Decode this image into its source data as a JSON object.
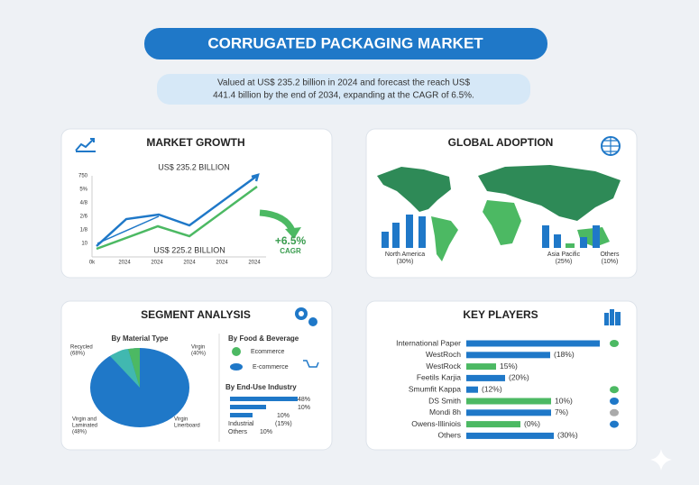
{
  "header": {
    "title": "CORRUGATED PACKAGING MARKET",
    "subtitle_lines": [
      "Valued at US$ 235.2 billion in 2024 and forecast the reach US$",
      "441.4 billion by the end of 2034, expanding at the CAGR of 6.5%."
    ]
  },
  "market_growth": {
    "title": "MARKET GROWTH",
    "top_label": "US$ 235.2 BILLION",
    "bottom_label": "US$ 225.2 BILLION",
    "cagr_value": "+6.5%",
    "cagr_label": "CAGR",
    "y_labels": [
      "750",
      "5%",
      "4/8",
      "2/6",
      "1/8",
      "10"
    ],
    "x_labels": [
      "0k",
      "2024",
      "2024",
      "2024",
      "2024",
      "2024"
    ]
  },
  "global_adoption": {
    "title": "GLOBAL ADOPTION",
    "regions": [
      {
        "name": "North America",
        "share": "(30%)"
      },
      {
        "name": "Asia Pacific",
        "share": "(25%)"
      },
      {
        "name": "Others",
        "share": "(10%)"
      }
    ]
  },
  "segment_analysis": {
    "title": "SEGMENT ANALYSIS",
    "material_title": "By Material Type",
    "recycled": [
      "Recycled",
      "(68%)"
    ],
    "virgin": [
      "Virgin",
      "(40%)"
    ],
    "laminated": [
      "Virgin and",
      "Laminated",
      "(48%)"
    ],
    "linerboard": [
      "Virgin",
      "Linerboard"
    ],
    "food_title": "By Food & Beverage",
    "food_items": [
      "Ecommerce",
      "E-commerce"
    ],
    "enduse_title": "By End-Use Industry",
    "enduse_rows": [
      {
        "name": "",
        "label": "48%"
      },
      {
        "name": "",
        "label": "10%"
      },
      {
        "name": "",
        "label": "10%"
      },
      {
        "name": "Industrial",
        "label": "(15%)"
      },
      {
        "name": "Others",
        "label": "10%"
      }
    ]
  },
  "key_players": {
    "title": "KEY PLAYERS",
    "rows": [
      {
        "name": "International Paper",
        "label": ""
      },
      {
        "name": "WestRoch",
        "label": "(18%)"
      },
      {
        "name": "WestRock",
        "label": "15%)"
      },
      {
        "name": "Feetils Karjia",
        "label": "(20%)"
      },
      {
        "name": "Smumfit Kappa",
        "label": "(12%)"
      },
      {
        "name": "DS Smith",
        "label": "10%)"
      },
      {
        "name": "Mondi 8h",
        "label": "7%)"
      },
      {
        "name": "Owens-Illiniois",
        "label": "(0%)"
      },
      {
        "name": "Others",
        "label": "(30%)"
      }
    ]
  }
}
